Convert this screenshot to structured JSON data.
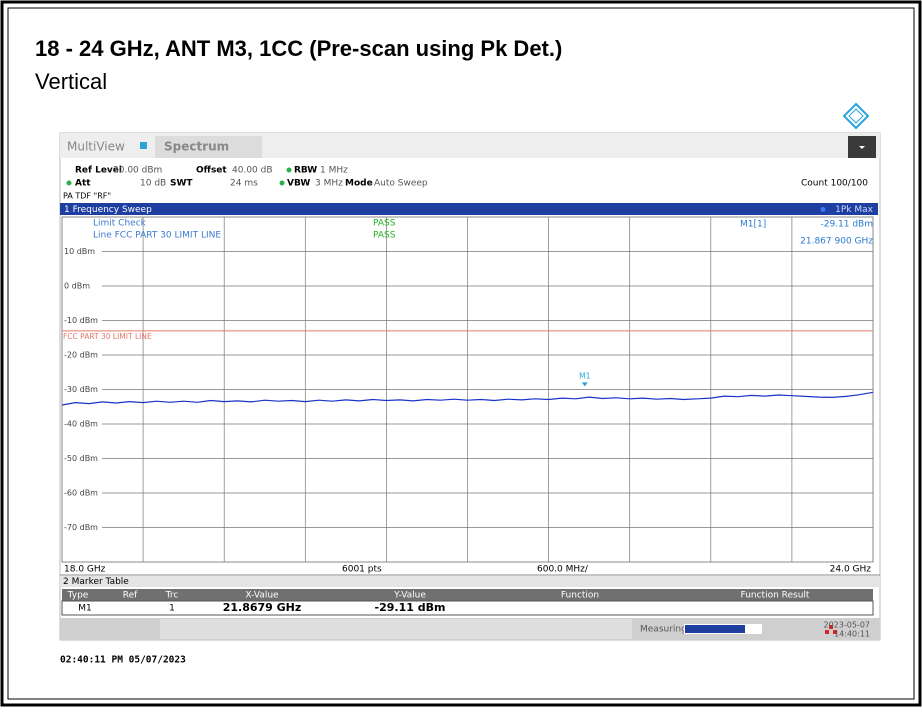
{
  "title": "18 - 24 GHz, ANT M3, 1CC (Pre-scan using Pk Det.)",
  "subtitle": "Vertical",
  "toolbar": {
    "app": "MultiView",
    "tab": "Spectrum"
  },
  "settings": [
    {
      "label": "Ref Level",
      "value": "20.00 dBm"
    },
    {
      "label": "Offset",
      "value": "40.00 dB"
    },
    {
      "label": "RBW",
      "value": "1 MHz"
    },
    {
      "label": "Att",
      "value": "10 dB"
    },
    {
      "label": "SWT",
      "value": "24 ms"
    },
    {
      "label": "VBW",
      "value": "3 MHz"
    },
    {
      "label": "Mode",
      "value": "Auto Sweep"
    }
  ],
  "count": "Count 100/100",
  "input": "PA TDF \"RF\"",
  "chart_data": {
    "type": "line",
    "window_title": "1 Frequency Sweep",
    "limit_check": {
      "title": "Limit Check",
      "result": "PASS",
      "line": "Line FCC PART 30 LIMIT LINE",
      "line_result": "PASS"
    },
    "limit_line": {
      "name": "FCC PART 30 LIMIT LINE",
      "value": -13,
      "color": "#e07a6a"
    },
    "marker": {
      "name": "M1",
      "ref": "M1[1]",
      "x": 21.8679,
      "y": -29.11,
      "y_label": "-29.11 dBm",
      "x_label": "21.867 900 GHz"
    },
    "xlim": [
      18,
      24
    ],
    "ylim": [
      -80,
      20
    ],
    "xticks": [
      {
        "value": 18,
        "label": "18.0 GHz"
      },
      {
        "value": 24,
        "label": "24.0 GHz"
      }
    ],
    "yticks": [
      {
        "value": 10,
        "label": "10 dBm"
      },
      {
        "value": 0,
        "label": "0 dBm"
      },
      {
        "value": -10,
        "label": "-10 dBm"
      },
      {
        "value": -20,
        "label": "-20 dBm"
      },
      {
        "value": -30,
        "label": "-30 dBm"
      },
      {
        "value": -40,
        "label": "-40 dBm"
      },
      {
        "value": -50,
        "label": "-50 dBm"
      },
      {
        "value": -60,
        "label": "-60 dBm"
      },
      {
        "value": -70,
        "label": "-70 dBm"
      }
    ],
    "grid": true,
    "footer": {
      "points": "6001 pts",
      "span": "600.0 MHz/"
    },
    "x": [
      18.0,
      18.1,
      18.2,
      18.3,
      18.4,
      18.5,
      18.6,
      18.7,
      18.8,
      18.9,
      19.0,
      19.1,
      19.2,
      19.3,
      19.4,
      19.5,
      19.6,
      19.7,
      19.8,
      19.9,
      20.0,
      20.1,
      20.2,
      20.3,
      20.4,
      20.5,
      20.6,
      20.7,
      20.8,
      20.9,
      21.0,
      21.1,
      21.2,
      21.3,
      21.4,
      21.5,
      21.6,
      21.7,
      21.8,
      21.9,
      22.0,
      22.1,
      22.2,
      22.3,
      22.4,
      22.5,
      22.6,
      22.7,
      22.8,
      22.9,
      23.0,
      23.1,
      23.2,
      23.3,
      23.4,
      23.5,
      23.6,
      23.7,
      23.8,
      23.9,
      24.0
    ],
    "series": [
      {
        "name": "1Pk Max",
        "color": "#1a33c8",
        "values": [
          -34.5,
          -33.8,
          -34.1,
          -33.6,
          -33.9,
          -33.5,
          -33.8,
          -33.4,
          -33.7,
          -33.4,
          -33.7,
          -33.2,
          -33.5,
          -33.3,
          -33.6,
          -33.1,
          -33.4,
          -33.2,
          -33.5,
          -33.1,
          -33.4,
          -33.0,
          -33.3,
          -32.9,
          -33.2,
          -33.0,
          -33.3,
          -32.9,
          -33.1,
          -32.8,
          -33.1,
          -32.9,
          -33.2,
          -32.8,
          -33.0,
          -32.7,
          -32.9,
          -32.5,
          -32.7,
          -32.2,
          -32.6,
          -32.4,
          -32.7,
          -32.5,
          -32.8,
          -32.6,
          -32.9,
          -32.7,
          -32.5,
          -31.9,
          -32.1,
          -31.7,
          -31.9,
          -31.6,
          -31.8,
          -32.0,
          -32.2,
          -32.3,
          -32.0,
          -31.5,
          -30.8
        ]
      }
    ]
  },
  "marker_table": {
    "title": "2 Marker Table",
    "columns": [
      "Type",
      "Ref",
      "Trc",
      "X-Value",
      "Y-Value",
      "Function",
      "Function Result"
    ],
    "rows": [
      {
        "type": "M1",
        "trc": "1",
        "x": "21.8679 GHz",
        "y": "-29.11 dBm"
      }
    ]
  },
  "status": {
    "state": "Measuring...",
    "date": "2023-05-07",
    "time": "14:40:11"
  },
  "timestamp": "02:40:11 PM 05/07/2023"
}
